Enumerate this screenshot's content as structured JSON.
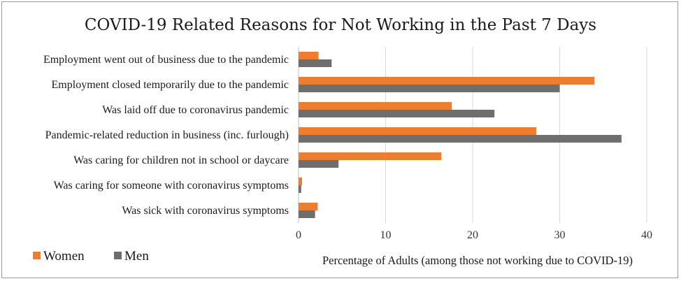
{
  "chart_data": {
    "type": "bar",
    "orientation": "horizontal",
    "title": "COVID-19 Related Reasons for Not Working in the Past 7 Days",
    "xlabel": "Percentage of Adults (among those not working due to COVID-19)",
    "ylabel": "",
    "xlim": [
      0,
      40
    ],
    "xticks": [
      0,
      10,
      20,
      30,
      40
    ],
    "grid": true,
    "legend_position": "bottom-left",
    "categories": [
      "Employment went out of business due to the pandemic",
      "Employment closed temporarily due to the pandemic",
      "Was laid off due to coronavirus pandemic",
      "Pandemic-related reduction in business (inc. furlough)",
      "Was caring for children not in school or daycare",
      "Was caring for someone with coronavirus symptoms",
      "Was sick with coronavirus symptoms"
    ],
    "series": [
      {
        "name": "Women",
        "color": "#ED7D31",
        "values": [
          2.3,
          34.0,
          17.6,
          27.3,
          16.4,
          0.4,
          2.2
        ]
      },
      {
        "name": "Men",
        "color": "#6E6E6E",
        "values": [
          3.8,
          30.0,
          22.5,
          37.1,
          4.6,
          0.3,
          1.9
        ]
      }
    ]
  }
}
